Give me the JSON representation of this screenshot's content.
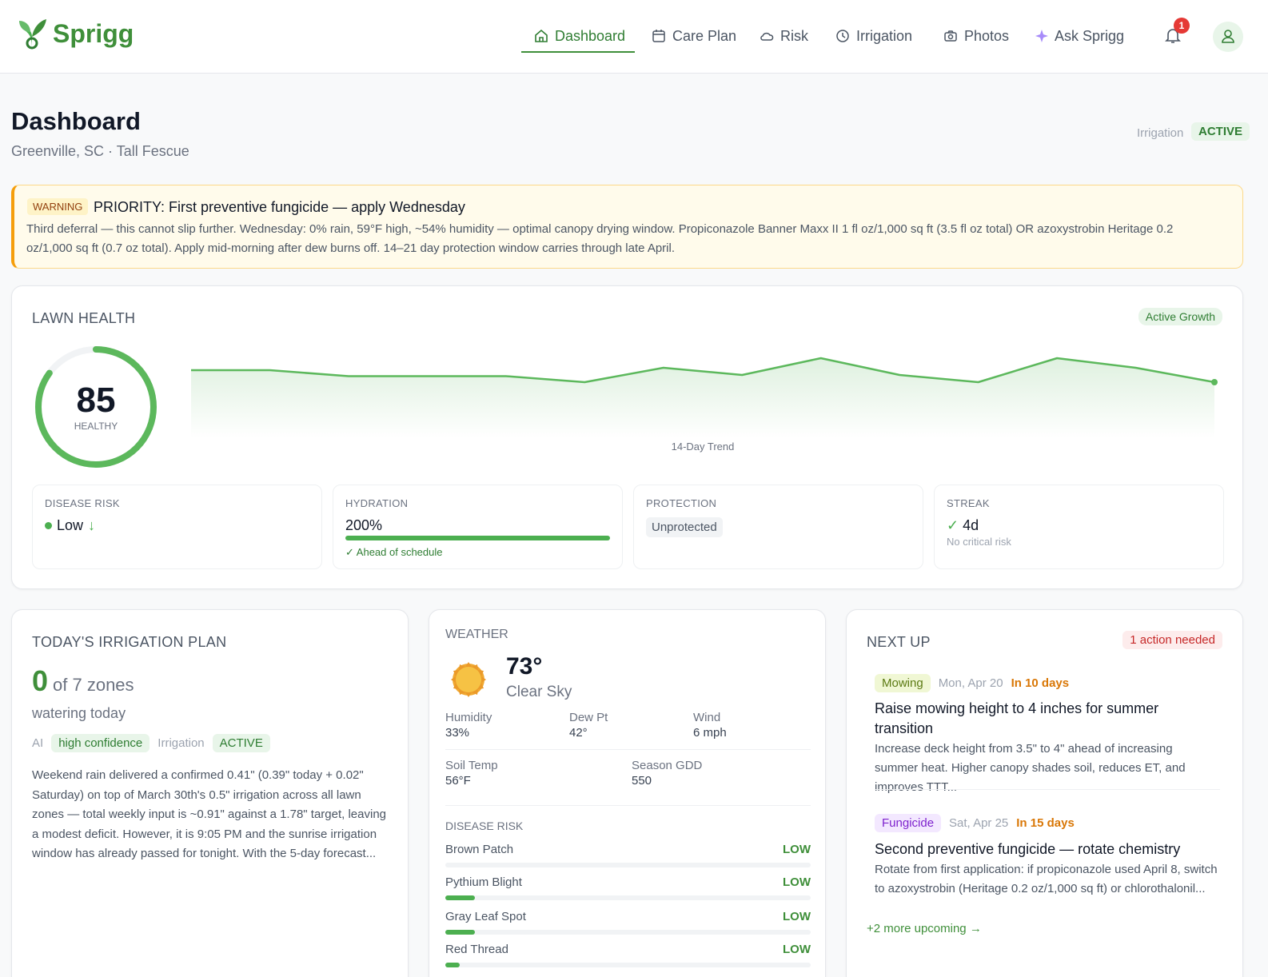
{
  "nav": {
    "logo": "Sprigg",
    "items": [
      "Dashboard",
      "Care Plan",
      "Risk",
      "Irrigation",
      "Photos",
      "Ask Sprigg"
    ],
    "notifications": "1"
  },
  "header": {
    "title": "Dashboard",
    "subtitle": "Greenville, SC · Tall Fescue",
    "status_label": "Irrigation",
    "status": "ACTIVE"
  },
  "alert": {
    "badge": "WARNING",
    "title": "PRIORITY: First preventive fungicide — apply Wednesday",
    "body": "Third deferral — this cannot slip further. Wednesday: 0% rain, 59°F high, ~54% humidity — optimal canopy drying window. Propiconazole Banner Maxx II 1 fl oz/1,000 sq ft (3.5 fl oz total) OR azoxystrobin Heritage 0.2 oz/1,000 sq ft (0.7 oz total). Apply mid-morning after dew burns off. 14–21 day protection window carries through late April."
  },
  "lawn_health": {
    "title": "LAWN HEALTH",
    "badge": "Active Growth",
    "score": "85",
    "score_label": "HEALTHY",
    "trend_label": "14-Day Trend",
    "trend": [
      86,
      86,
      85.5,
      85.5,
      85.5,
      85,
      86.2,
      85.6,
      87,
      85.6,
      85,
      87,
      86.2,
      85
    ],
    "metrics": [
      {
        "label": "DISEASE RISK",
        "value": "Low",
        "trend": "↓"
      },
      {
        "label": "HYDRATION",
        "value": "200%",
        "note": "✓ Ahead of schedule"
      },
      {
        "label": "PROTECTION",
        "value": "Unprotected"
      },
      {
        "label": "STREAK",
        "icon": "✓",
        "value": "4d",
        "note": "No critical risk"
      }
    ]
  },
  "irrigation": {
    "title": "TODAY'S IRRIGATION PLAN",
    "count": "0",
    "of": "of 7 zones",
    "sub": "watering today",
    "tags": [
      "AI",
      "high confidence",
      "Irrigation",
      "ACTIVE"
    ],
    "body": "Weekend rain delivered a confirmed 0.41\" (0.39\" today + 0.02\" Saturday) on top of March 30th's 0.5\" irrigation across all lawn zones — total weekly input is ~0.91\" against a 1.78\" target, leaving a modest deficit. However, it is 9:05 PM and the sunrise irrigation window has already passed for tonight. With the 5-day forecast..."
  },
  "weather": {
    "title": "WEATHER",
    "temp": "73°",
    "condition": "Clear Sky",
    "stats": [
      {
        "label": "Humidity",
        "value": "33%"
      },
      {
        "label": "Dew Pt",
        "value": "42°"
      },
      {
        "label": "Wind",
        "value": "6 mph"
      },
      {
        "label": "Soil Temp",
        "value": "56°F"
      },
      {
        "label": "Season GDD",
        "value": "550"
      }
    ],
    "risk_title": "DISEASE RISK",
    "risks": [
      {
        "name": "Brown Patch",
        "level": "LOW"
      },
      {
        "name": "Pythium Blight",
        "level": "LOW"
      },
      {
        "name": "Gray Leaf Spot",
        "level": "LOW"
      },
      {
        "name": "Red Thread",
        "level": "LOW"
      }
    ]
  },
  "next_up": {
    "title": "NEXT UP",
    "badge": "1 action needed",
    "tasks": [
      {
        "tag": "Mowing",
        "date": "Mon, Apr 20",
        "due": "In 10 days",
        "title": "Raise mowing height to 4 inches for summer transition",
        "desc": "Increase deck height from 3.5\" to 4\" ahead of increasing summer heat. Higher canopy shades soil, reduces ET, and improves TTT..."
      },
      {
        "tag": "Fungicide",
        "date": "Sat, Apr 25",
        "due": "In 15 days",
        "title": "Second preventive fungicide — rotate chemistry",
        "desc": "Rotate from first application: if propiconazole used April 8, switch to azoxystrobin (Heritage 0.2 oz/1,000 sq ft) or chlorothalonil..."
      }
    ],
    "more": "+2 more upcoming →"
  }
}
